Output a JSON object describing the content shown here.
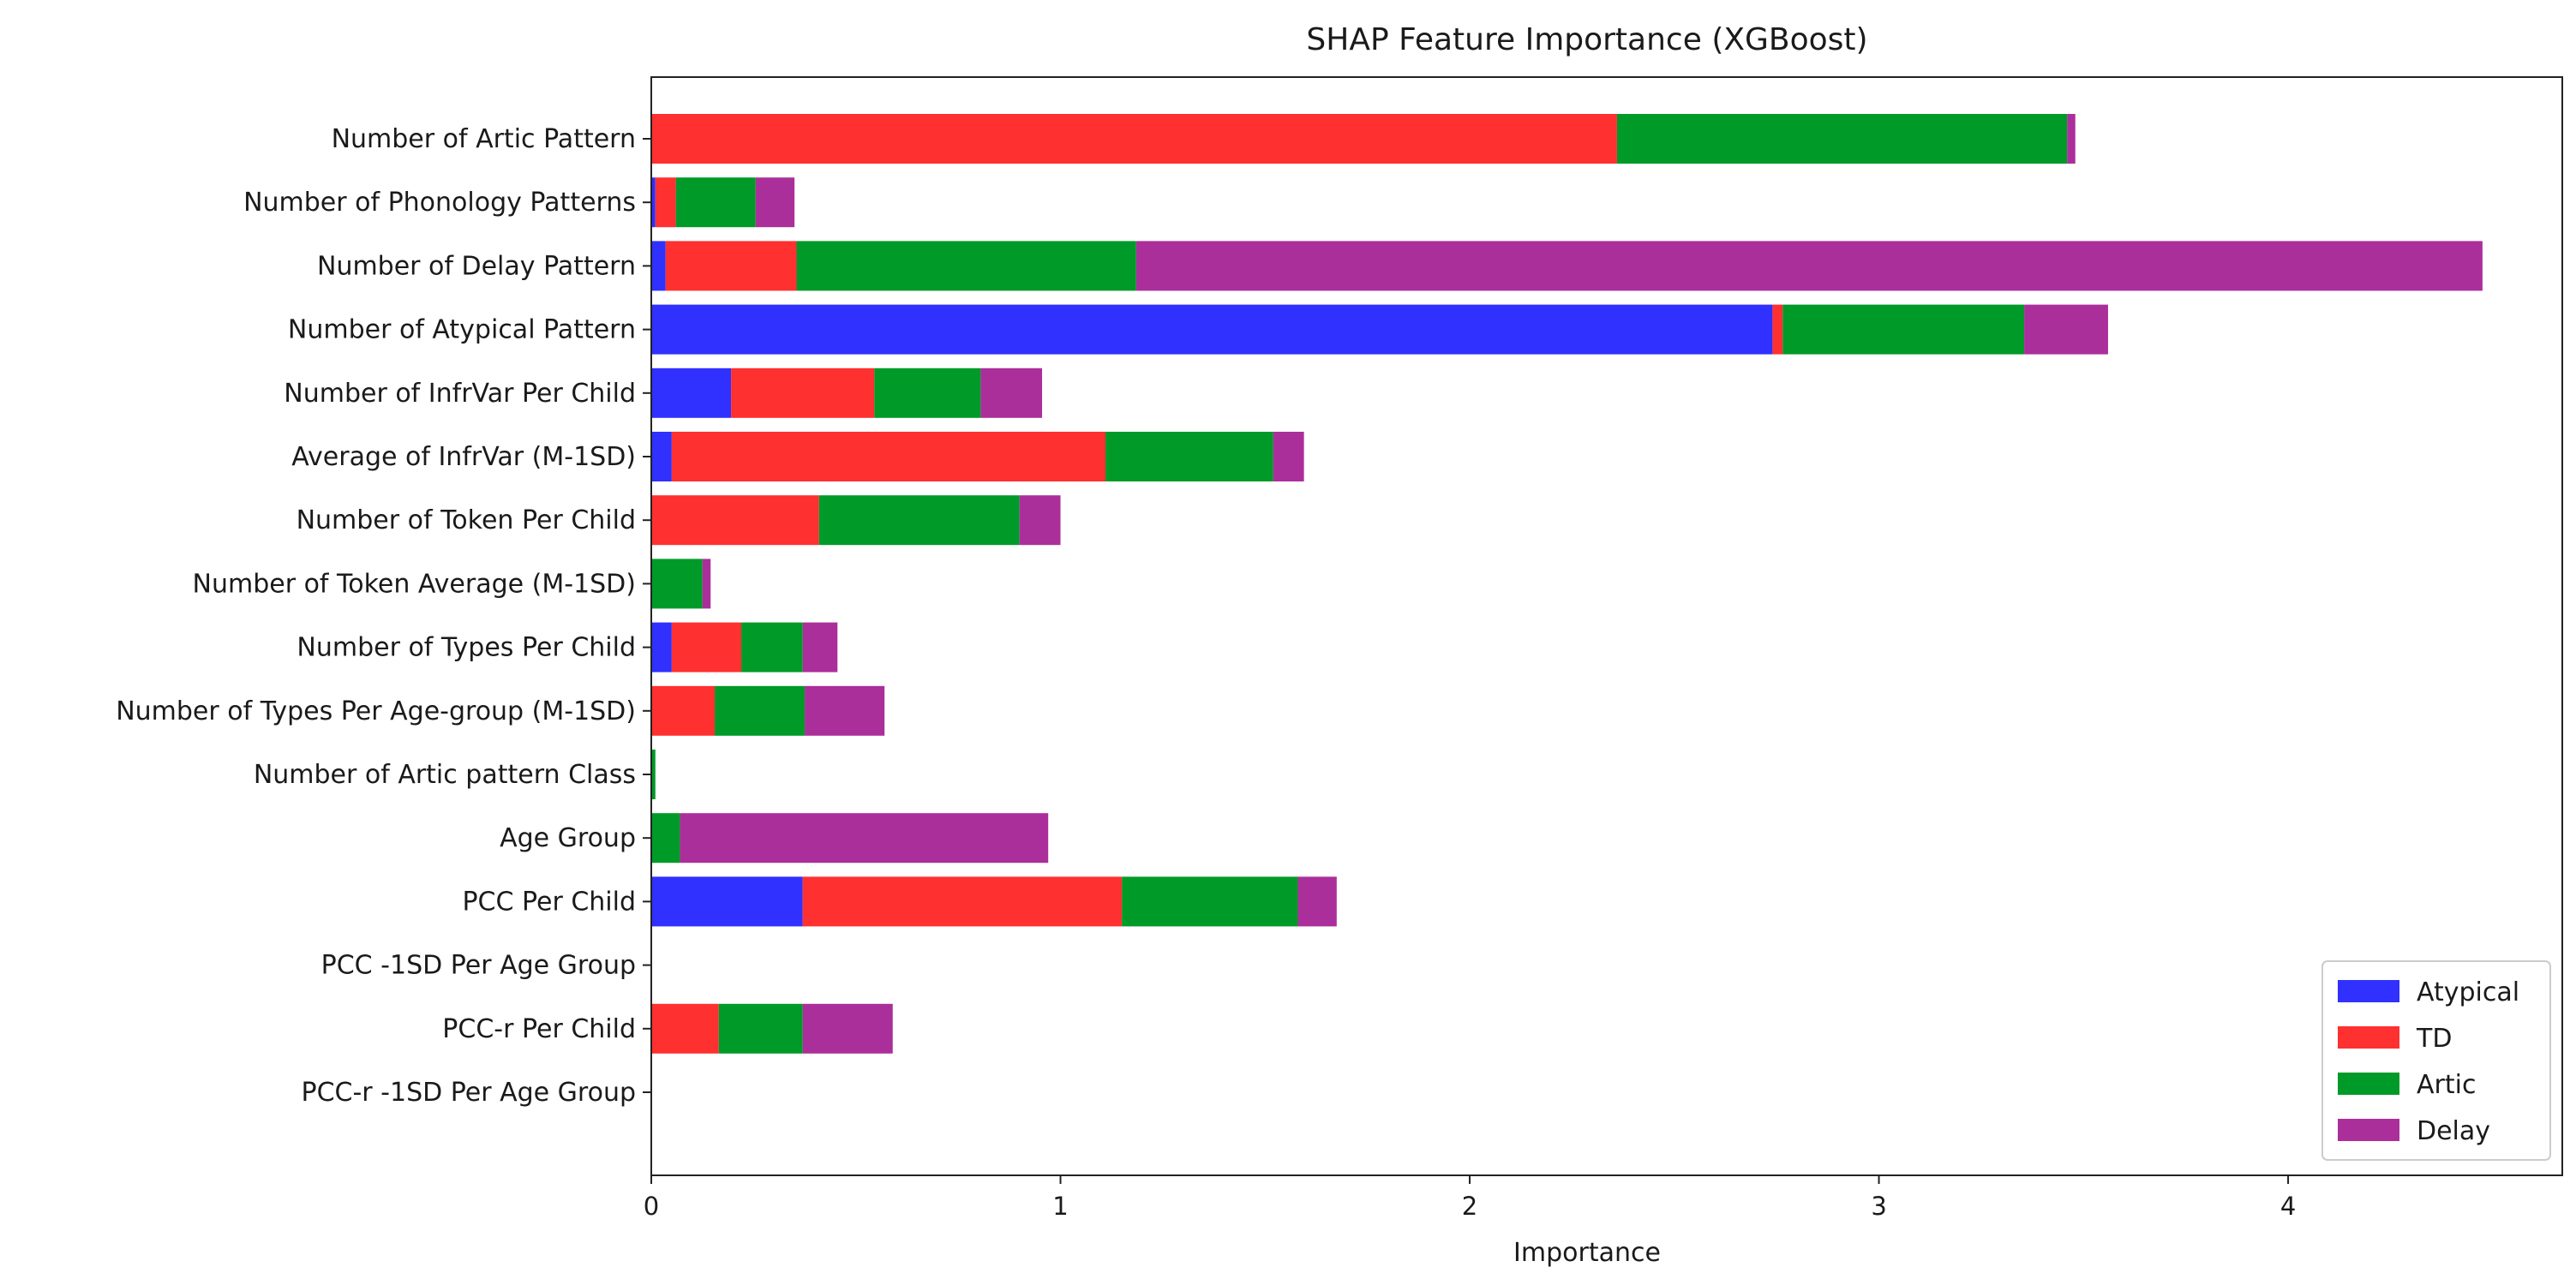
{
  "chart_data": {
    "type": "bar",
    "orientation": "horizontal",
    "stacked": true,
    "title": "SHAP Feature Importance (XGBoost)",
    "xlabel": "Importance",
    "ylabel": "",
    "xlim": [
      0,
      4.67
    ],
    "xticks": [
      0,
      1,
      2,
      3,
      4
    ],
    "xtick_labels": [
      "0",
      "1",
      "2",
      "3",
      "4"
    ],
    "grid": false,
    "legend_position": "lower right",
    "categories": [
      "Number of Artic Pattern",
      "Number of Phonology Patterns",
      "Number of Delay Pattern",
      "Number of Atypical Pattern",
      "Number of InfrVar Per Child",
      "Average of InfrVar (M-1SD)",
      "Number of Token Per Child",
      "Number of Token Average (M-1SD)",
      "Number of Types Per Child",
      "Number of Types Per Age-group (M-1SD)",
      "Number of Artic pattern Class",
      "Age Group",
      "PCC Per Child",
      "PCC -1SD Per Age Group",
      "PCC-r Per Child",
      "PCC-r -1SD Per Age Group"
    ],
    "series": [
      {
        "name": "Atypical",
        "color": "#3030ff",
        "values": [
          0.0,
          0.01,
          0.035,
          2.74,
          0.195,
          0.05,
          0.0,
          0.0,
          0.05,
          0.0,
          0.0,
          0.0,
          0.37,
          0.0,
          0.0,
          0.0
        ]
      },
      {
        "name": "TD",
        "color": "#ff3030",
        "values": [
          2.36,
          0.05,
          0.32,
          0.025,
          0.35,
          1.06,
          0.41,
          0.0,
          0.17,
          0.155,
          0.0,
          0.0,
          0.78,
          0.0,
          0.165,
          0.0
        ]
      },
      {
        "name": "Artic",
        "color": "#009a28",
        "values": [
          1.1,
          0.195,
          0.83,
          0.59,
          0.26,
          0.41,
          0.49,
          0.125,
          0.15,
          0.22,
          0.01,
          0.07,
          0.43,
          0.0,
          0.205,
          0.0
        ]
      },
      {
        "name": "Delay",
        "color": "#ab2f9a",
        "values": [
          0.02,
          0.095,
          3.29,
          0.205,
          0.15,
          0.075,
          0.1,
          0.02,
          0.085,
          0.195,
          0.0,
          0.9,
          0.095,
          0.0,
          0.22,
          0.0
        ]
      }
    ]
  }
}
